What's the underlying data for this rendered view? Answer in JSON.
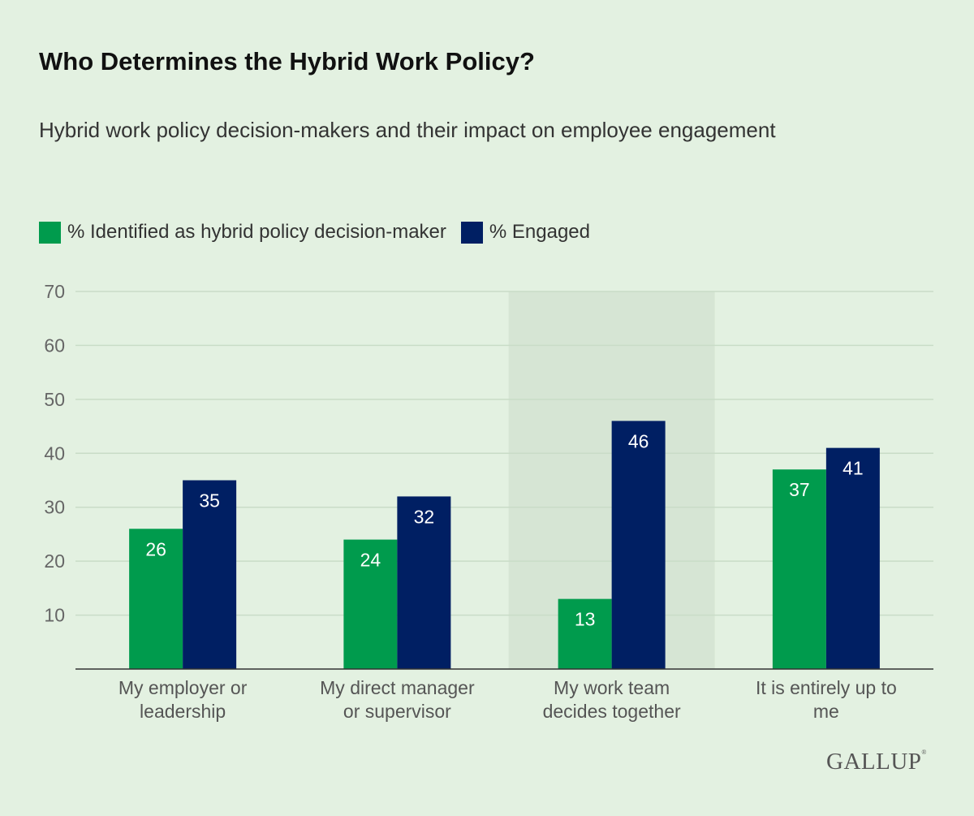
{
  "chart_data": {
    "type": "bar",
    "title": "Who Determines the Hybrid Work Policy?",
    "subtitle": "Hybrid work policy decision-makers and their impact on employee engagement",
    "categories": [
      [
        "My employer or",
        "leadership"
      ],
      [
        "My direct manager",
        "or supervisor"
      ],
      [
        "My work team",
        "decides together"
      ],
      [
        "It is entirely up to",
        "me"
      ]
    ],
    "series": [
      {
        "name": "% Identified as hybrid policy decision-maker",
        "color": "#009b4d",
        "values": [
          26,
          24,
          13,
          37
        ]
      },
      {
        "name": "% Engaged",
        "color": "#001f63",
        "values": [
          35,
          32,
          46,
          41
        ]
      }
    ],
    "ylim": [
      0,
      70
    ],
    "yticks": [
      10,
      20,
      30,
      40,
      50,
      60,
      70
    ],
    "grid": true,
    "legend": "top-left",
    "highlighted_category": 2,
    "xlabel": "",
    "ylabel": ""
  },
  "logo": "GALLUP",
  "colors": {
    "background": "#e3f1e1",
    "highlight": "#d6e5d4"
  }
}
